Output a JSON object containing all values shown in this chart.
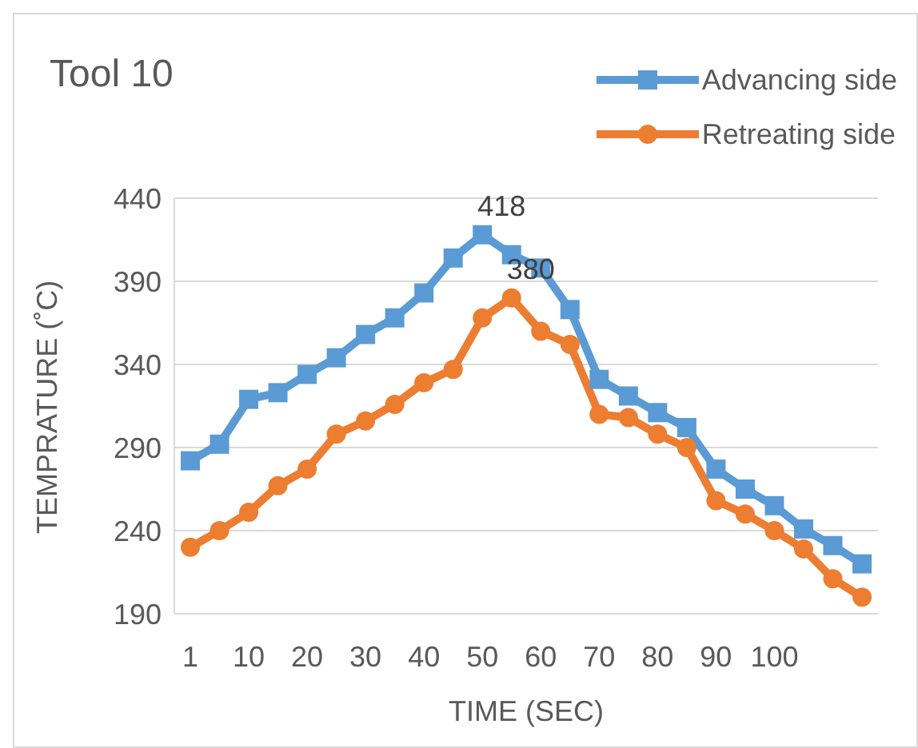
{
  "chart_data": {
    "type": "line",
    "title": "Tool 10",
    "xlabel": "TIME (SEC)",
    "ylabel": "TEMPRATURE (˚C)",
    "categories": [
      "1",
      null,
      "10",
      null,
      "20",
      null,
      "30",
      null,
      "40",
      null,
      "50",
      null,
      "60",
      null,
      "70",
      null,
      "80",
      null,
      "90",
      null,
      "100",
      null,
      null,
      null
    ],
    "series": [
      {
        "name": "Advancing side",
        "color": "#5b9bd5",
        "marker": "square",
        "values": [
          282,
          292,
          319,
          323,
          334,
          344,
          358,
          368,
          383,
          404,
          418,
          406,
          398,
          373,
          331,
          321,
          311,
          302,
          277,
          265,
          255,
          241,
          231,
          220
        ],
        "value_labels": [
          null,
          null,
          null,
          null,
          null,
          null,
          null,
          null,
          null,
          null,
          "418",
          null,
          null,
          null,
          null,
          null,
          null,
          null,
          null,
          null,
          null,
          null,
          null,
          null
        ]
      },
      {
        "name": "Retreating side",
        "color": "#ed7d31",
        "marker": "circle",
        "values": [
          230,
          240,
          251,
          267,
          277,
          298,
          306,
          316,
          329,
          337,
          368,
          380,
          360,
          352,
          310,
          308,
          298,
          290,
          258,
          250,
          240,
          229,
          211,
          200
        ],
        "value_labels": [
          null,
          null,
          null,
          null,
          null,
          null,
          null,
          null,
          null,
          null,
          null,
          "380",
          null,
          null,
          null,
          null,
          null,
          null,
          null,
          null,
          null,
          null,
          null,
          null
        ]
      }
    ],
    "ylim": [
      190,
      440
    ],
    "yticks": [
      190,
      240,
      290,
      340,
      390,
      440
    ],
    "grid": "y",
    "legend": "top right",
    "line_style": "solid"
  }
}
